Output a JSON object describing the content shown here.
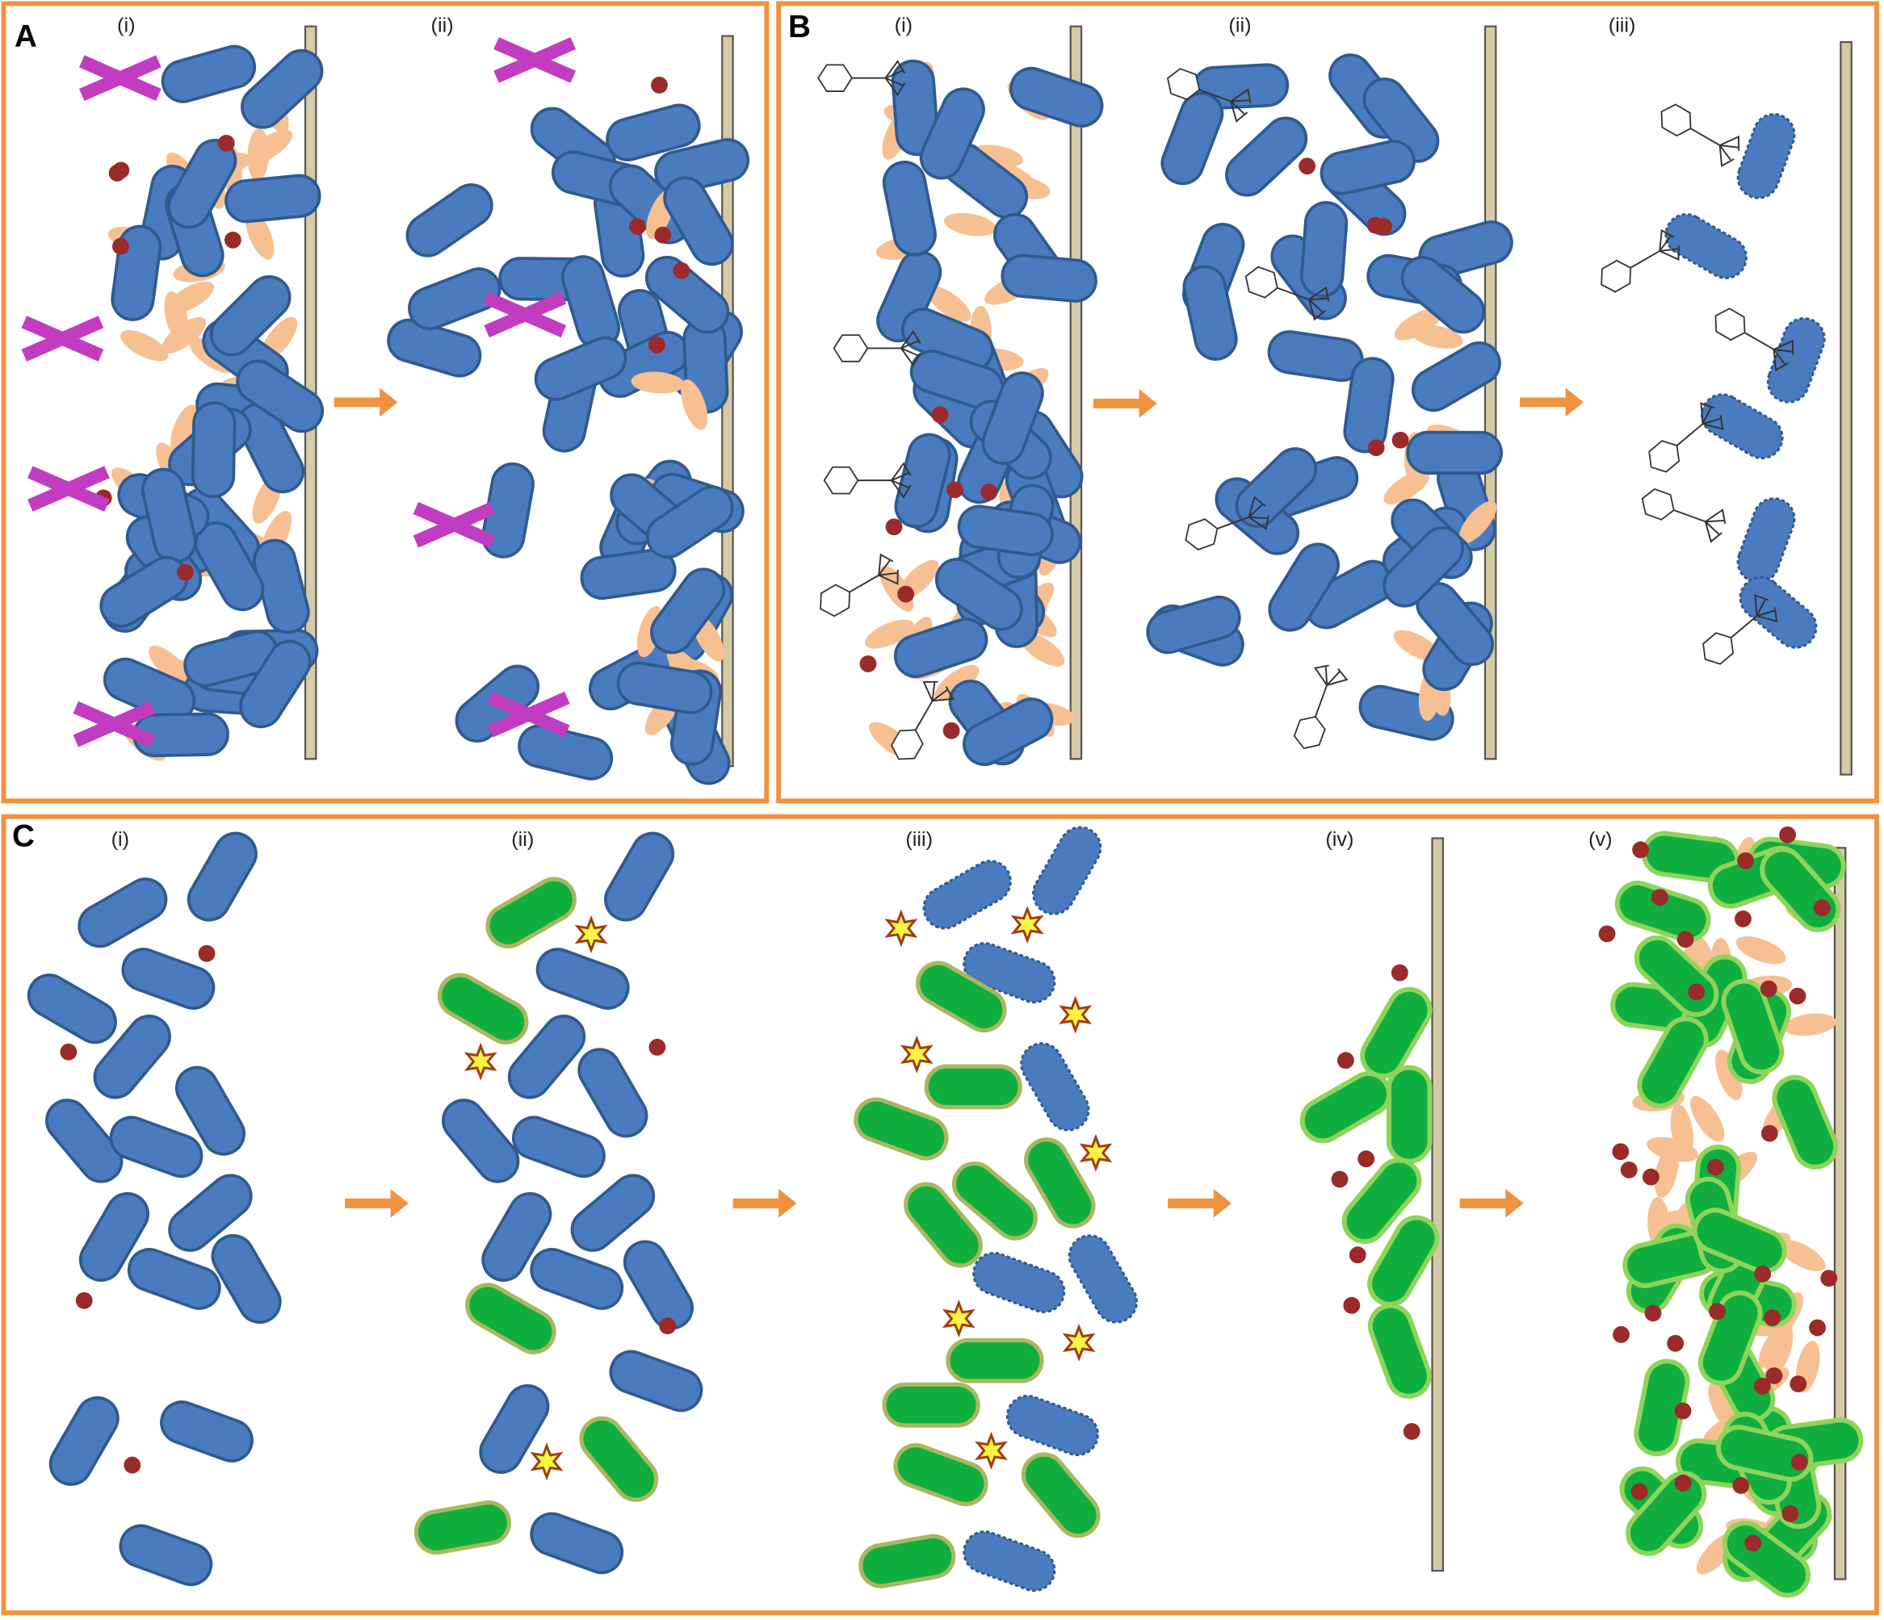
{
  "panels": [
    {
      "label": "A",
      "steps": [
        "(i)",
        "(ii)"
      ]
    },
    {
      "label": "B",
      "steps": [
        "(i)",
        "(ii)",
        "(iii)"
      ]
    },
    {
      "label": "C",
      "steps": [
        "(i)",
        "(ii)",
        "(iii)",
        "(iv)",
        "(v)"
      ]
    }
  ]
}
